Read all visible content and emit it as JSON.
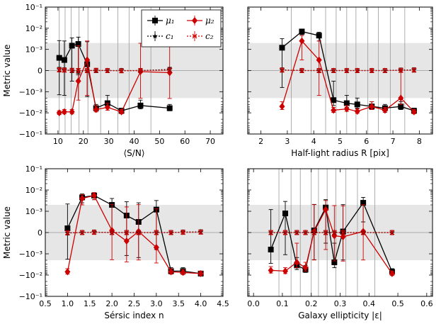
{
  "chart_data": [
    {
      "type": "line",
      "panel": "S/N",
      "xlabel": "⟨S/N⟩",
      "ylabel": "Metric value",
      "xlim": [
        5,
        75
      ],
      "xticks": [
        10,
        20,
        30,
        40,
        50,
        60,
        70
      ],
      "xtick_labels": [
        "10",
        "20",
        "30",
        "40",
        "50",
        "60",
        "70"
      ],
      "ylim": [
        -0.1,
        0.1
      ],
      "yscale": "symlog",
      "ylinthresh": 0.001,
      "yticks": [
        -0.1,
        -0.01,
        -0.001,
        0,
        0.001,
        0.01,
        0.1
      ],
      "ytick_labels": [
        "−10⁻¹",
        "−10⁻²",
        "−10⁻³",
        "0",
        "10⁻³",
        "10⁻²",
        "10⁻¹"
      ],
      "shaded_band": [
        -0.002,
        0.002
      ],
      "vlines": [
        10.5,
        12.8,
        15.2,
        18.3,
        21.8,
        26.8,
        33.6,
        38,
        46.6
      ],
      "legend": {
        "position": "top-right",
        "entries": [
          "μ₁",
          "μ₂",
          "c₁",
          "c₂"
        ]
      },
      "series": [
        {
          "name": "μ₁",
          "color": "#000000",
          "marker": "square",
          "line": "solid",
          "x": [
            10.5,
            12.5,
            15.5,
            18,
            21.5,
            25,
            29.5,
            35,
            42.5,
            54
          ],
          "y": [
            0.0006,
            0.0005,
            0.0015,
            0.0018,
            0.0003,
            -0.006,
            -0.0035,
            -0.008,
            -0.0045,
            -0.006
          ],
          "err": [
            0.002,
            0.002,
            0.002,
            0.002,
            0.002,
            0.002,
            0.002,
            0.002,
            0.002,
            0.002
          ]
        },
        {
          "name": "μ₂",
          "color": "#cc0000",
          "marker": "diamond",
          "line": "solid",
          "x": [
            10.5,
            12.5,
            15.5,
            18,
            21.5,
            25,
            29.5,
            35,
            42.5,
            54
          ],
          "y": [
            -0.01,
            -0.009,
            -0.009,
            -0.0005,
            0.0005,
            -0.007,
            -0.0055,
            -0.009,
            -5e-05,
            -0.0001
          ],
          "err": [
            0.002,
            0.002,
            0.002,
            0.002,
            0.002,
            0.002,
            0.002,
            0.002,
            0.002,
            0.002
          ]
        },
        {
          "name": "c₁",
          "color": "#000000",
          "marker": "star",
          "line": "dotted",
          "x": [
            10.5,
            12.5,
            15.5,
            18,
            21.5,
            25,
            29.5,
            35,
            42.5,
            54
          ],
          "y": [
            5e-05,
            3e-05,
            0,
            -3e-05,
            0,
            0,
            0,
            0,
            0,
            5e-05
          ],
          "err": [
            0.0001,
            0.0001,
            0.0001,
            0.0001,
            0.0001,
            0.0001,
            0.0001,
            0.0001,
            0.0001,
            0.0001
          ]
        },
        {
          "name": "c₂",
          "color": "#cc0000",
          "marker": "x",
          "line": "dotted",
          "x": [
            10.5,
            12.5,
            15.5,
            18,
            21.5,
            25,
            29.5,
            35,
            42.5,
            54
          ],
          "y": [
            3e-05,
            2e-05,
            1e-05,
            0,
            0,
            1e-05,
            0,
            -1e-05,
            0,
            2e-05
          ],
          "err": [
            0.0001,
            0.0001,
            0.0001,
            0.0001,
            0.0001,
            0.0001,
            0.0001,
            0.0001,
            0.0001,
            0.0001
          ]
        }
      ]
    },
    {
      "type": "line",
      "panel": "Half-light radius",
      "xlabel": "Half-light radius R [pix]",
      "ylabel": "",
      "xlim": [
        1.5,
        8.5
      ],
      "xticks": [
        2,
        3,
        4,
        5,
        6,
        7,
        8
      ],
      "xtick_labels": [
        "2",
        "3",
        "4",
        "5",
        "6",
        "7",
        "8"
      ],
      "ylim": [
        -0.1,
        0.1
      ],
      "yscale": "symlog",
      "ylinthresh": 0.001,
      "yticks": [
        -0.1,
        -0.01,
        -0.001,
        0,
        0.001,
        0.01,
        0.1
      ],
      "ytick_labels": [],
      "shaded_band": [
        -0.002,
        0.002
      ],
      "vlines": [
        3.15,
        3.9,
        4.45,
        4.85,
        5.25,
        5.6,
        6.05,
        6.45,
        6.9,
        7.45
      ],
      "series": [
        {
          "name": "μ₁",
          "color": "#000000",
          "marker": "square",
          "line": "solid",
          "x": [
            2.8,
            3.55,
            4.2,
            4.75,
            5.25,
            5.65,
            6.2,
            6.7,
            7.3,
            7.8
          ],
          "y": [
            0.0012,
            0.007,
            0.0045,
            -0.0025,
            -0.0035,
            -0.004,
            -0.005,
            -0.006,
            -0.005,
            -0.008
          ],
          "err": [
            0.002,
            0.002,
            0.002,
            0.002,
            0.002,
            0.002,
            0.002,
            0.002,
            0.002,
            0.002
          ]
        },
        {
          "name": "μ₂",
          "color": "#cc0000",
          "marker": "diamond",
          "line": "solid",
          "x": [
            2.8,
            3.55,
            4.2,
            4.75,
            5.25,
            5.65,
            6.2,
            6.7,
            7.3,
            7.8
          ],
          "y": [
            -0.005,
            0.0025,
            0.0005,
            -0.0075,
            -0.0065,
            -0.0085,
            -0.005,
            -0.0075,
            -0.002,
            -0.009
          ],
          "err": [
            0.002,
            0.002,
            0.002,
            0.002,
            0.002,
            0.002,
            0.002,
            0.002,
            0.002,
            0.002
          ]
        },
        {
          "name": "c₁",
          "color": "#000000",
          "marker": "star",
          "line": "dotted",
          "x": [
            2.8,
            3.55,
            4.2,
            4.75,
            5.25,
            5.65,
            6.2,
            6.7,
            7.3,
            7.8
          ],
          "y": [
            3e-05,
            0,
            0,
            0,
            0,
            0,
            0,
            0,
            2e-05,
            3e-05
          ],
          "err": [
            0.0001,
            0.0001,
            0.0001,
            0.0001,
            0.0001,
            0.0001,
            0.0001,
            0.0001,
            0.0001,
            0.0001
          ]
        },
        {
          "name": "c₂",
          "color": "#cc0000",
          "marker": "x",
          "line": "dotted",
          "x": [
            2.8,
            3.55,
            4.2,
            4.75,
            5.25,
            5.65,
            6.2,
            6.7,
            7.3,
            7.8
          ],
          "y": [
            2e-05,
            0,
            0,
            0,
            0,
            0,
            0,
            0,
            1e-05,
            2e-05
          ],
          "err": [
            0.0001,
            0.0001,
            0.0001,
            0.0001,
            0.0001,
            0.0001,
            0.0001,
            0.0001,
            0.0001,
            0.0001
          ]
        }
      ]
    },
    {
      "type": "line",
      "panel": "Sersic",
      "xlabel": "Sérsic index n",
      "ylabel": "Metric value",
      "xlim": [
        0.5,
        4.5
      ],
      "xticks": [
        0.5,
        1.0,
        1.5,
        2.0,
        2.5,
        3.0,
        3.5,
        4.0,
        4.5
      ],
      "xtick_labels": [
        "0.5",
        "1.0",
        "1.5",
        "2.0",
        "2.5",
        "3.0",
        "3.5",
        "4.0",
        "4.5"
      ],
      "ylim": [
        -0.1,
        0.1
      ],
      "yscale": "symlog",
      "ylinthresh": 0.001,
      "yticks": [
        -0.1,
        -0.01,
        -0.001,
        0,
        0.001,
        0.01,
        0.1
      ],
      "ytick_labels": [
        "−10⁻¹",
        "−10⁻²",
        "−10⁻³",
        "0",
        "10⁻³",
        "10⁻²",
        "10⁻¹"
      ],
      "shaded_band": [
        -0.002,
        0.002
      ],
      "vlines": [],
      "series": [
        {
          "name": "μ₁",
          "color": "#000000",
          "marker": "square",
          "line": "solid",
          "x": [
            1.0,
            1.33,
            1.6,
            2.0,
            2.33,
            2.6,
            3.0,
            3.33,
            3.6,
            4.0
          ],
          "y": [
            0.0002,
            0.0045,
            0.0055,
            0.002,
            0.0008,
            0.0005,
            0.0012,
            -0.0065,
            -0.0065,
            -0.0085
          ],
          "err": [
            0.002,
            0.002,
            0.002,
            0.002,
            0.002,
            0.002,
            0.002,
            0.002,
            0.002,
            0.002
          ]
        },
        {
          "name": "μ₂",
          "color": "#cc0000",
          "marker": "diamond",
          "line": "solid",
          "x": [
            1.0,
            1.33,
            1.6,
            2.0,
            2.33,
            2.6,
            3.0,
            3.33,
            3.6,
            4.0
          ],
          "y": [
            -0.007,
            0.004,
            0.0055,
            0.0001,
            -0.0004,
            5e-05,
            -0.0007,
            -0.007,
            -0.0075,
            -0.0085
          ],
          "err": [
            0.002,
            0.002,
            0.002,
            0.002,
            0.002,
            0.002,
            0.002,
            0.002,
            0.002,
            0.002
          ]
        },
        {
          "name": "c₁",
          "color": "#000000",
          "marker": "star",
          "line": "dotted",
          "x": [
            1.0,
            1.33,
            1.6,
            2.0,
            2.33,
            2.6,
            3.0,
            3.33,
            3.6,
            4.0
          ],
          "y": [
            -2e-05,
            0,
            2e-05,
            0,
            0,
            0,
            0,
            0,
            2e-05,
            3e-05
          ],
          "err": [
            0.0001,
            0.0001,
            0.0001,
            0.0001,
            0.0001,
            0.0001,
            0.0001,
            0.0001,
            0.0001,
            0.0001
          ]
        },
        {
          "name": "c₂",
          "color": "#cc0000",
          "marker": "x",
          "line": "dotted",
          "x": [
            1.0,
            1.33,
            1.6,
            2.0,
            2.33,
            2.6,
            3.0,
            3.33,
            3.6,
            4.0
          ],
          "y": [
            -1e-05,
            0,
            1e-05,
            0,
            0,
            0,
            0,
            0,
            1e-05,
            2e-05
          ],
          "err": [
            0.0001,
            0.0001,
            0.0001,
            0.0001,
            0.0001,
            0.0001,
            0.0001,
            0.0001,
            0.0001,
            0.0001
          ]
        }
      ]
    },
    {
      "type": "line",
      "panel": "Ellipticity",
      "xlabel": "Galaxy ellipticity |ε|",
      "ylabel": "",
      "xlim": [
        -0.02,
        0.62
      ],
      "xticks": [
        0.0,
        0.1,
        0.2,
        0.3,
        0.4,
        0.5,
        0.6
      ],
      "xtick_labels": [
        "0.0",
        "0.1",
        "0.2",
        "0.3",
        "0.4",
        "0.5",
        "0.6"
      ],
      "ylim": [
        -0.1,
        0.1
      ],
      "yscale": "symlog",
      "ylinthresh": 0.001,
      "yticks": [
        -0.1,
        -0.01,
        -0.001,
        0,
        0.001,
        0.01,
        0.1
      ],
      "ytick_labels": [],
      "shaded_band": [
        -0.002,
        0.002
      ],
      "vlines": [
        0.088,
        0.13,
        0.162,
        0.2,
        0.225,
        0.255,
        0.285,
        0.32,
        0.36,
        0.42
      ],
      "series": [
        {
          "name": "μ₁",
          "color": "#000000",
          "marker": "square",
          "line": "solid",
          "x": [
            0.06,
            0.11,
            0.15,
            0.18,
            0.21,
            0.25,
            0.28,
            0.31,
            0.38,
            0.48
          ],
          "y": [
            -0.0008,
            0.0009,
            -0.0035,
            -0.0055,
            0.0001,
            0.0015,
            -0.0025,
            5e-05,
            0.0025,
            -0.007
          ],
          "err": [
            0.002,
            0.002,
            0.002,
            0.002,
            0.002,
            0.002,
            0.002,
            0.002,
            0.002,
            0.002
          ]
        },
        {
          "name": "μ₂",
          "color": "#cc0000",
          "marker": "diamond",
          "line": "solid",
          "x": [
            0.06,
            0.11,
            0.15,
            0.18,
            0.21,
            0.25,
            0.28,
            0.31,
            0.38,
            0.48
          ],
          "y": [
            -0.006,
            -0.0065,
            -0.0025,
            -0.0045,
            5e-05,
            0.0012,
            -0.00015,
            -0.0002,
            5e-05,
            -0.0085
          ],
          "err": [
            0.002,
            0.002,
            0.002,
            0.002,
            0.002,
            0.002,
            0.002,
            0.002,
            0.002,
            0.002
          ]
        },
        {
          "name": "c₁",
          "color": "#000000",
          "marker": "star",
          "line": "dotted",
          "x": [
            0.06,
            0.11,
            0.15,
            0.18,
            0.21,
            0.25,
            0.28,
            0.31,
            0.38,
            0.48
          ],
          "y": [
            0,
            0,
            0,
            0,
            0,
            0,
            0,
            0,
            0,
            0
          ],
          "err": [
            0.0001,
            0.0001,
            0.0001,
            0.0001,
            0.0001,
            0.0001,
            0.0001,
            0.0001,
            0.0001,
            0.0001
          ]
        },
        {
          "name": "c₂",
          "color": "#cc0000",
          "marker": "x",
          "line": "dotted",
          "x": [
            0.06,
            0.11,
            0.15,
            0.18,
            0.21,
            0.25,
            0.28,
            0.31,
            0.38,
            0.48
          ],
          "y": [
            0,
            0,
            0,
            0,
            0,
            0,
            0,
            0,
            0,
            0
          ],
          "err": [
            0.0001,
            0.0001,
            0.0001,
            0.0001,
            0.0001,
            0.0001,
            0.0001,
            0.0001,
            0.0001,
            0.0001
          ]
        }
      ]
    }
  ]
}
